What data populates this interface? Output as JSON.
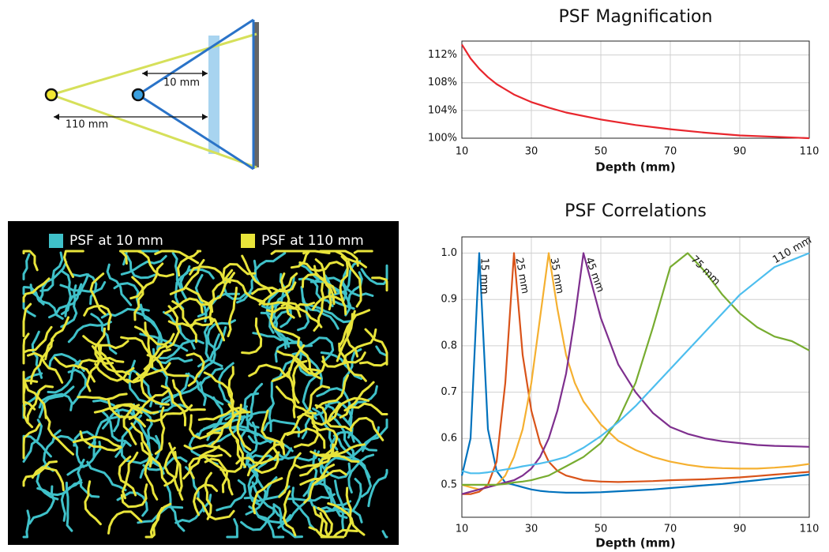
{
  "diagram": {
    "labels": [
      "10 mm",
      "110 mm"
    ]
  },
  "psf_image": {
    "legend": [
      {
        "label": "PSF at 10 mm",
        "color": "#3fc1c9"
      },
      {
        "label": "PSF at 110 mm",
        "color": "#e8e43a"
      }
    ]
  },
  "chart_data": [
    {
      "type": "line",
      "title": "PSF Magnification",
      "xlabel": "Depth (mm)",
      "x": [
        10,
        12.5,
        15,
        17.5,
        20,
        25,
        30,
        35,
        40,
        50,
        60,
        70,
        80,
        90,
        100,
        110
      ],
      "values": [
        113.5,
        111.5,
        110,
        108.8,
        107.8,
        106.3,
        105.2,
        104.4,
        103.7,
        102.7,
        101.9,
        101.3,
        100.8,
        100.4,
        100.2,
        100
      ],
      "color": "#e8262d",
      "xlim": [
        10,
        110
      ],
      "xticks": [
        10,
        30,
        50,
        70,
        90,
        110
      ],
      "ylim": [
        100,
        114
      ],
      "yticks": [
        {
          "value": 100,
          "label": "100%"
        },
        {
          "value": 104,
          "label": "104%"
        },
        {
          "value": 108,
          "label": "108%"
        },
        {
          "value": 112,
          "label": "112%"
        }
      ],
      "grid": true
    },
    {
      "type": "line",
      "title": "PSF Correlations",
      "xlabel": "Depth (mm)",
      "x": [
        10,
        12.5,
        15,
        17.5,
        20,
        22.5,
        25,
        27.5,
        30,
        32.5,
        35,
        37.5,
        40,
        42.5,
        45,
        50,
        55,
        60,
        65,
        70,
        75,
        80,
        85,
        90,
        95,
        100,
        105,
        110
      ],
      "series": [
        {
          "name": "15 mm",
          "color": "#0072bd",
          "values": [
            0.52,
            0.6,
            1.0,
            0.62,
            0.53,
            0.505,
            0.5,
            0.495,
            0.49,
            0.487,
            0.485,
            0.484,
            0.483,
            0.483,
            0.483,
            0.484,
            0.486,
            0.488,
            0.49,
            0.493,
            0.496,
            0.499,
            0.502,
            0.506,
            0.51,
            0.514,
            0.518,
            0.522
          ]
        },
        {
          "name": "25 mm",
          "color": "#d95319",
          "values": [
            0.48,
            0.48,
            0.485,
            0.5,
            0.55,
            0.72,
            1.0,
            0.78,
            0.66,
            0.59,
            0.55,
            0.53,
            0.52,
            0.515,
            0.51,
            0.507,
            0.506,
            0.507,
            0.508,
            0.51,
            0.511,
            0.512,
            0.514,
            0.516,
            0.519,
            0.522,
            0.525,
            0.528
          ]
        },
        {
          "name": "35 mm",
          "color": "#f5b030",
          "values": [
            0.5,
            0.495,
            0.49,
            0.495,
            0.5,
            0.52,
            0.56,
            0.62,
            0.72,
            0.86,
            1.0,
            0.88,
            0.78,
            0.72,
            0.68,
            0.63,
            0.595,
            0.575,
            0.56,
            0.55,
            0.543,
            0.538,
            0.536,
            0.535,
            0.535,
            0.537,
            0.54,
            0.545
          ]
        },
        {
          "name": "45 mm",
          "color": "#7e2f8e",
          "values": [
            0.48,
            0.485,
            0.49,
            0.495,
            0.5,
            0.505,
            0.51,
            0.52,
            0.535,
            0.56,
            0.6,
            0.66,
            0.74,
            0.86,
            1.0,
            0.86,
            0.76,
            0.7,
            0.655,
            0.625,
            0.61,
            0.6,
            0.594,
            0.59,
            0.586,
            0.584,
            0.583,
            0.582
          ]
        },
        {
          "name": "75 mm",
          "color": "#77ac30",
          "values": [
            0.5,
            0.5,
            0.5,
            0.5,
            0.5,
            0.502,
            0.505,
            0.507,
            0.51,
            0.515,
            0.52,
            0.53,
            0.54,
            0.55,
            0.56,
            0.59,
            0.64,
            0.72,
            0.84,
            0.97,
            1.0,
            0.96,
            0.91,
            0.87,
            0.84,
            0.82,
            0.81,
            0.79
          ]
        },
        {
          "name": "110 mm",
          "color": "#4dbeee",
          "values": [
            0.53,
            0.525,
            0.525,
            0.527,
            0.53,
            0.533,
            0.536,
            0.54,
            0.543,
            0.546,
            0.55,
            0.555,
            0.56,
            0.57,
            0.58,
            0.605,
            0.635,
            0.67,
            0.71,
            0.75,
            0.79,
            0.83,
            0.87,
            0.91,
            0.94,
            0.97,
            0.985,
            1.0
          ]
        }
      ],
      "xlim": [
        10,
        110
      ],
      "xticks": [
        10,
        30,
        50,
        70,
        90,
        110
      ],
      "ylim": [
        0.43,
        1.035
      ],
      "yticks": [
        0.5,
        0.6,
        0.7,
        0.8,
        0.9,
        {
          "value": 1,
          "label": "1.0"
        }
      ],
      "grid": true
    }
  ]
}
